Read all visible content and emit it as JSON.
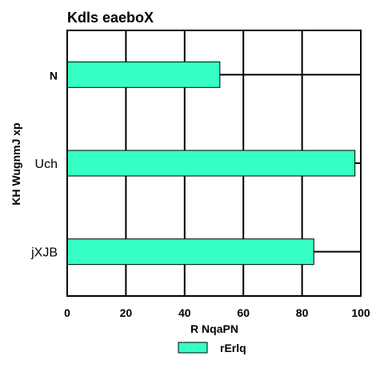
{
  "chart_data": {
    "type": "bar",
    "orientation": "horizontal",
    "title": "Kdls eaeboX",
    "xlabel": "R NqaPN",
    "ylabel": "KH WugnmJ xp",
    "categories": [
      "N",
      "Uch",
      "jXJB"
    ],
    "series": [
      {
        "name": "rErlq",
        "values": [
          52,
          98,
          84
        ],
        "color": "#36ffc4"
      }
    ],
    "xlim": [
      0,
      100
    ],
    "xticks": [
      0,
      20,
      40,
      60,
      80,
      100
    ],
    "grid": true,
    "legend": "bottom-center"
  }
}
